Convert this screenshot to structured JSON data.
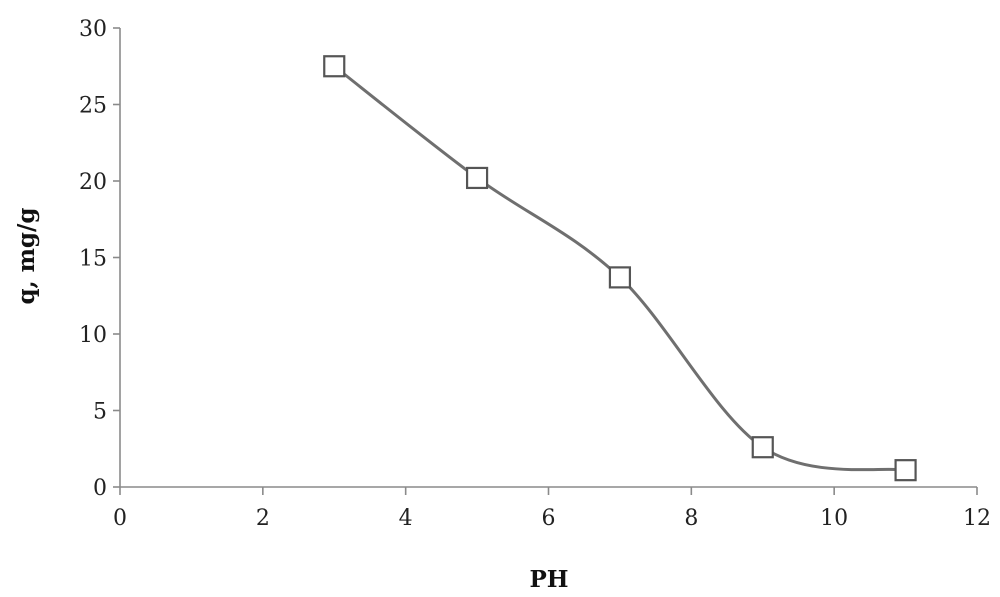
{
  "chart_data": {
    "type": "line",
    "title": "",
    "xlabel": "PH",
    "ylabel": "q, mg/g",
    "xlim": [
      0,
      12
    ],
    "ylim": [
      0,
      30
    ],
    "xticks": [
      0,
      2,
      4,
      6,
      8,
      10,
      12
    ],
    "yticks": [
      0,
      5,
      10,
      15,
      20,
      25,
      30
    ],
    "grid": false,
    "smooth": true,
    "marker": "open-square",
    "line_color": "#6f6f6f",
    "series": [
      {
        "x": [
          3,
          5,
          7,
          9,
          11
        ],
        "values": [
          27.5,
          20.2,
          13.7,
          2.6,
          1.1
        ]
      }
    ]
  }
}
